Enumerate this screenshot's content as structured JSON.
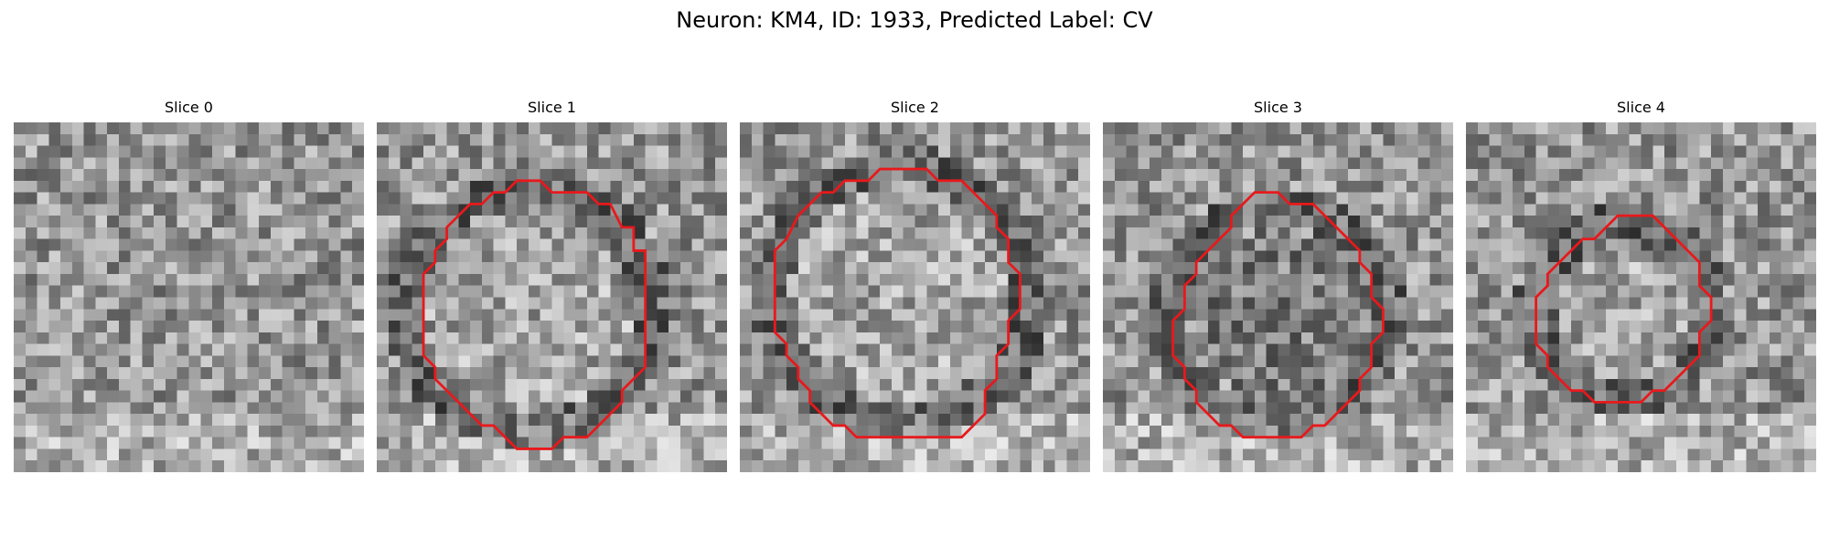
{
  "figure": {
    "title": "Neuron: KM4, ID: 1933, Predicted Label: CV"
  },
  "panels": [
    {
      "title": "Slice 0",
      "seed": 11,
      "has_contour": false,
      "contour": []
    },
    {
      "title": "Slice 1",
      "seed": 23,
      "has_contour": true,
      "contour": [
        [
          15,
          6
        ],
        [
          18,
          6
        ],
        [
          19,
          7
        ],
        [
          20,
          7
        ],
        [
          21,
          9
        ],
        [
          22,
          9
        ],
        [
          22,
          11
        ],
        [
          23,
          11
        ],
        [
          23,
          21
        ],
        [
          22,
          22
        ],
        [
          21,
          23
        ],
        [
          21,
          24
        ],
        [
          20,
          25
        ],
        [
          19,
          26
        ],
        [
          18,
          27
        ],
        [
          16,
          27
        ],
        [
          15,
          28
        ],
        [
          12,
          28
        ],
        [
          11,
          27
        ],
        [
          10,
          26
        ],
        [
          9,
          26
        ],
        [
          8,
          25
        ],
        [
          7,
          24
        ],
        [
          6,
          23
        ],
        [
          5,
          22
        ],
        [
          5,
          21
        ],
        [
          4,
          20
        ],
        [
          4,
          13
        ],
        [
          5,
          12
        ],
        [
          5,
          11
        ],
        [
          6,
          10
        ],
        [
          6,
          9
        ],
        [
          7,
          8
        ],
        [
          8,
          7
        ],
        [
          9,
          7
        ],
        [
          10,
          6
        ],
        [
          11,
          6
        ],
        [
          12,
          5
        ],
        [
          14,
          5
        ]
      ],
      "contour_color": "#e8191c"
    },
    {
      "title": "Slice 2",
      "seed": 37,
      "has_contour": true,
      "contour": [
        [
          15,
          4
        ],
        [
          16,
          4
        ],
        [
          17,
          5
        ],
        [
          19,
          5
        ],
        [
          20,
          6
        ],
        [
          21,
          7
        ],
        [
          22,
          8
        ],
        [
          22,
          9
        ],
        [
          23,
          10
        ],
        [
          23,
          12
        ],
        [
          24,
          13
        ],
        [
          24,
          16
        ],
        [
          23,
          17
        ],
        [
          23,
          19
        ],
        [
          22,
          20
        ],
        [
          22,
          22
        ],
        [
          21,
          23
        ],
        [
          21,
          25
        ],
        [
          20,
          26
        ],
        [
          19,
          27
        ],
        [
          18,
          27
        ],
        [
          10,
          27
        ],
        [
          9,
          26
        ],
        [
          8,
          26
        ],
        [
          7,
          25
        ],
        [
          6,
          24
        ],
        [
          6,
          23
        ],
        [
          5,
          22
        ],
        [
          5,
          21
        ],
        [
          4,
          20
        ],
        [
          4,
          19
        ],
        [
          3,
          18
        ],
        [
          3,
          11
        ],
        [
          4,
          10
        ],
        [
          5,
          8
        ],
        [
          6,
          7
        ],
        [
          7,
          6
        ],
        [
          8,
          6
        ],
        [
          9,
          5
        ],
        [
          11,
          5
        ],
        [
          12,
          4
        ],
        [
          14,
          4
        ]
      ],
      "contour_color": "#e8191c"
    },
    {
      "title": "Slice 3",
      "seed": 53,
      "has_contour": true,
      "contour": [
        [
          13,
          6
        ],
        [
          15,
          6
        ],
        [
          16,
          7
        ],
        [
          18,
          7
        ],
        [
          19,
          8
        ],
        [
          20,
          9
        ],
        [
          21,
          10
        ],
        [
          22,
          11
        ],
        [
          22,
          12
        ],
        [
          23,
          13
        ],
        [
          23,
          15
        ],
        [
          24,
          16
        ],
        [
          24,
          18
        ],
        [
          23,
          19
        ],
        [
          23,
          21
        ],
        [
          22,
          22
        ],
        [
          22,
          23
        ],
        [
          21,
          24
        ],
        [
          20,
          25
        ],
        [
          19,
          26
        ],
        [
          18,
          26
        ],
        [
          17,
          27
        ],
        [
          12,
          27
        ],
        [
          11,
          26
        ],
        [
          10,
          26
        ],
        [
          9,
          25
        ],
        [
          8,
          24
        ],
        [
          8,
          23
        ],
        [
          7,
          22
        ],
        [
          7,
          21
        ],
        [
          6,
          20
        ],
        [
          6,
          17
        ],
        [
          7,
          16
        ],
        [
          7,
          14
        ],
        [
          8,
          13
        ],
        [
          8,
          12
        ],
        [
          9,
          11
        ],
        [
          10,
          10
        ],
        [
          11,
          9
        ],
        [
          11,
          8
        ],
        [
          12,
          7
        ]
      ],
      "contour_color": "#e8191c"
    },
    {
      "title": "Slice 4",
      "seed": 71,
      "has_contour": true,
      "contour": [
        [
          12,
          9
        ],
        [
          13,
          8
        ],
        [
          16,
          8
        ],
        [
          17,
          9
        ],
        [
          18,
          10
        ],
        [
          19,
          11
        ],
        [
          20,
          12
        ],
        [
          20,
          14
        ],
        [
          21,
          15
        ],
        [
          21,
          17
        ],
        [
          20,
          18
        ],
        [
          20,
          20
        ],
        [
          19,
          21
        ],
        [
          18,
          22
        ],
        [
          17,
          23
        ],
        [
          16,
          23
        ],
        [
          15,
          24
        ],
        [
          11,
          24
        ],
        [
          10,
          23
        ],
        [
          9,
          23
        ],
        [
          8,
          22
        ],
        [
          7,
          21
        ],
        [
          7,
          20
        ],
        [
          6,
          19
        ],
        [
          6,
          15
        ],
        [
          7,
          14
        ],
        [
          7,
          13
        ],
        [
          8,
          12
        ],
        [
          9,
          11
        ],
        [
          10,
          10
        ],
        [
          11,
          10
        ]
      ],
      "contour_color": "#e8191c"
    }
  ]
}
